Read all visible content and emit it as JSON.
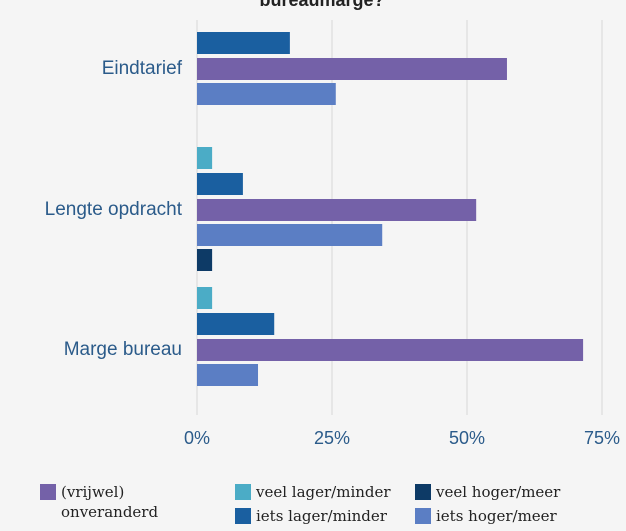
{
  "chart_data": {
    "type": "bar",
    "orientation": "horizontal",
    "title": "bureaumarge?",
    "categories": [
      "Eindtarief",
      "Lengte opdracht",
      "Marge bureau"
    ],
    "series": [
      {
        "name": "veel lager/minder",
        "color": "#4bacc6",
        "values": [
          0,
          2.8,
          2.8
        ]
      },
      {
        "name": "iets lager/minder",
        "color": "#1a5fa0",
        "values": [
          17.2,
          8.5,
          14.3
        ]
      },
      {
        "name": "(vrijwel) onveranderd",
        "color": "#7461a8",
        "values": [
          57.4,
          51.7,
          71.5
        ]
      },
      {
        "name": "iets hoger/meer",
        "color": "#5b7ec4",
        "values": [
          25.7,
          34.3,
          11.3
        ]
      },
      {
        "name": "veel hoger/meer",
        "color": "#0d3a66",
        "values": [
          0,
          2.8,
          0
        ]
      }
    ],
    "xlim": [
      0,
      75
    ],
    "xticks": [
      {
        "value": 0,
        "label": "0%"
      },
      {
        "value": 25,
        "label": "25%"
      },
      {
        "value": 50,
        "label": "50%"
      },
      {
        "value": 75,
        "label": "75%"
      }
    ],
    "grid": true,
    "legend": "bottom"
  }
}
